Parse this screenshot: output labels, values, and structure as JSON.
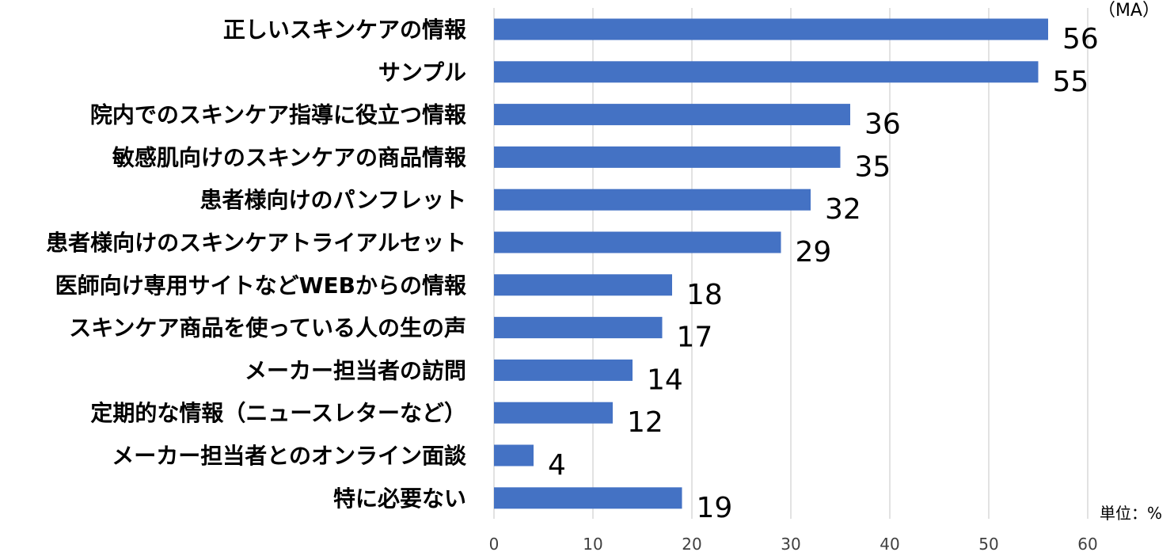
{
  "chart_data": {
    "type": "bar",
    "orientation": "horizontal",
    "categories": [
      "正しいスキンケアの情報",
      "サンプル",
      "院内でのスキンケア指導に役立つ情報",
      "敏感肌向けのスキンケアの商品情報",
      "患者様向けのパンフレット",
      "患者様向けのスキンケアトライアルセット",
      "医師向け専用サイトなどWEBからの情報",
      "スキンケア商品を使っている人の生の声",
      "メーカー担当者の訪問",
      "定期的な情報（ニュースレターなど）",
      "メーカー担当者とのオンライン面談",
      "特に必要ない"
    ],
    "values": [
      56,
      55,
      36,
      35,
      32,
      29,
      18,
      17,
      14,
      12,
      4,
      19
    ],
    "xlim": [
      0,
      60
    ],
    "xticks": [
      0,
      10,
      20,
      30,
      40,
      50,
      60
    ],
    "grid": true,
    "legend": "none",
    "bar_color": "#4472C4",
    "grid_color": "#D9D9D9"
  },
  "annotations": {
    "ma": "（MA）",
    "unit": "単位：%"
  }
}
